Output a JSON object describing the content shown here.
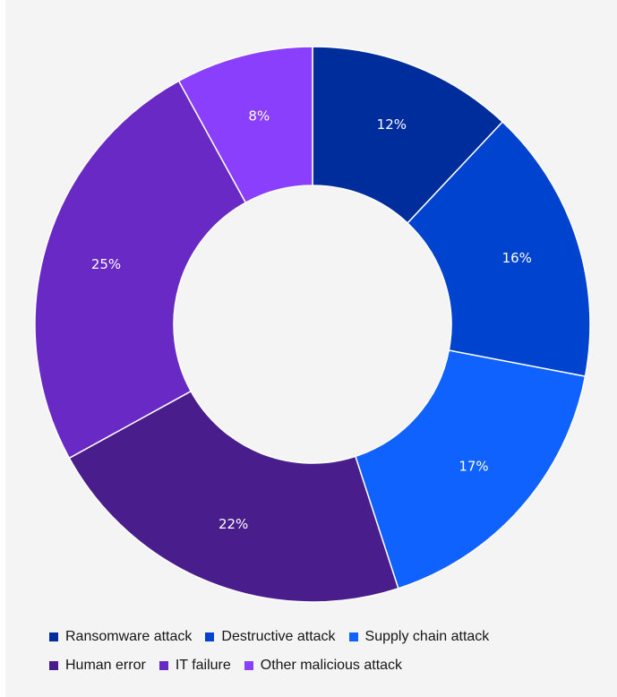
{
  "chart_data": {
    "type": "pie",
    "donut": true,
    "categories": [
      "Ransomware attack",
      "Destructive attack",
      "Supply chain attack",
      "Human error",
      "IT failure",
      "Other malicious attack"
    ],
    "values": [
      12,
      16,
      17,
      22,
      25,
      8
    ],
    "value_labels": [
      "12%",
      "16%",
      "17%",
      "22%",
      "25%",
      "8%"
    ],
    "colors": [
      "#002d9c",
      "#0043ce",
      "#0f62fe",
      "#491d8b",
      "#6929c4",
      "#8a3ffc"
    ],
    "legend": {
      "placement": "bottom",
      "rows": [
        [
          {
            "label": "Ransomware attack",
            "color": "#002d9c"
          },
          {
            "label": "Destructive attack",
            "color": "#0043ce"
          },
          {
            "label": "Supply chain attack",
            "color": "#0f62fe"
          }
        ],
        [
          {
            "label": "Human error",
            "color": "#491d8b"
          },
          {
            "label": "IT failure",
            "color": "#6929c4"
          },
          {
            "label": "Other malicious attack",
            "color": "#8a3ffc"
          }
        ]
      ]
    }
  }
}
